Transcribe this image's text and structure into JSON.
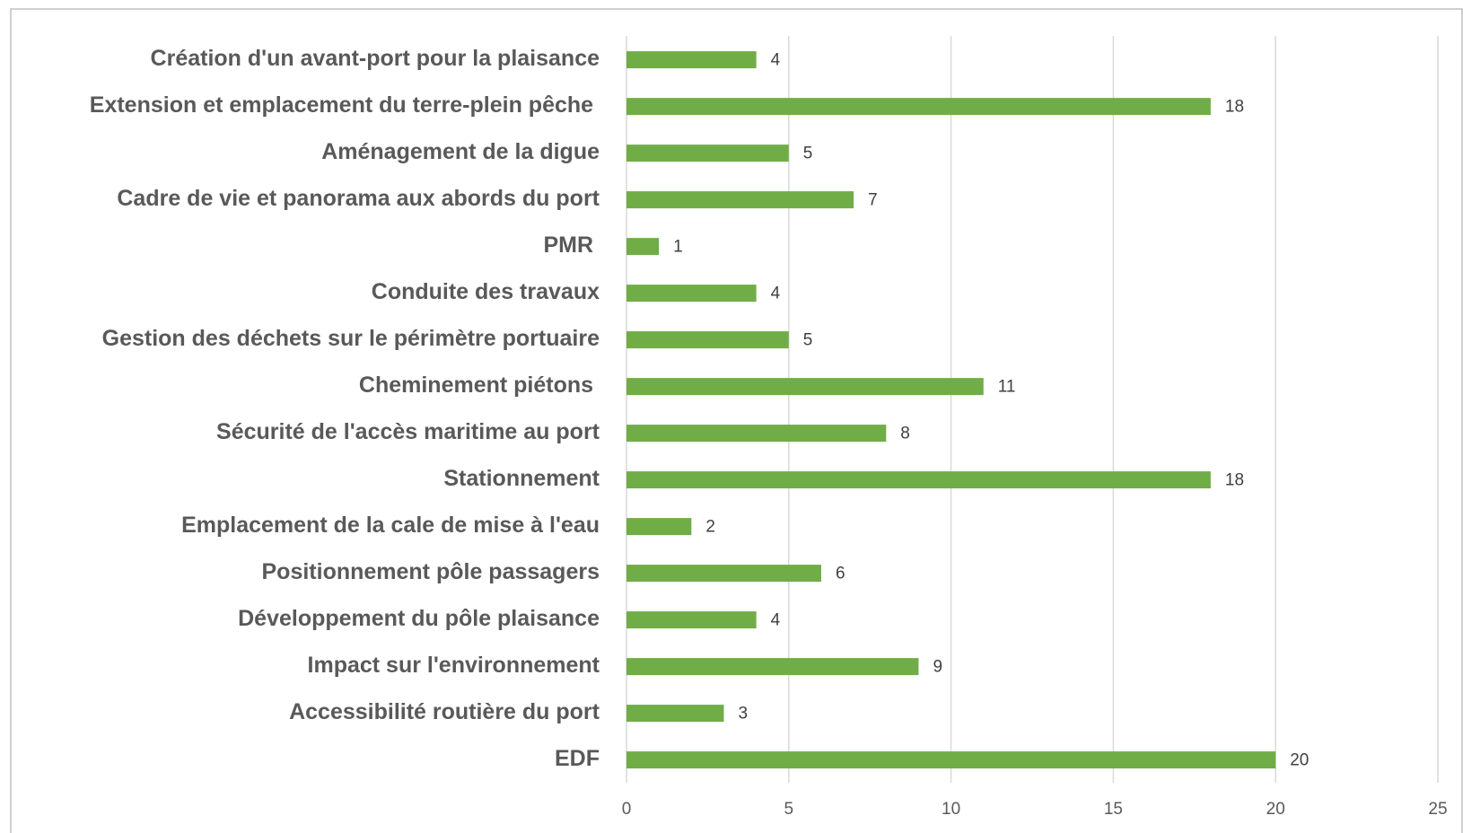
{
  "chart_data": {
    "type": "bar",
    "orientation": "horizontal",
    "categories": [
      "Création d'un avant-port pour la plaisance",
      "Extension et emplacement du terre-plein pêche ",
      "Aménagement de la digue",
      "Cadre de vie et panorama aux abords du port",
      "PMR ",
      "Conduite des travaux",
      "Gestion des déchets sur le périmètre portuaire",
      "Cheminement piétons ",
      "Sécurité de l'accès maritime au port",
      "Stationnement",
      "Emplacement de la cale de mise à l'eau",
      "Positionnement pôle passagers",
      "Développement du pôle plaisance",
      "Impact sur l'environnement",
      "Accessibilité routière du port",
      "EDF"
    ],
    "values": [
      4,
      18,
      5,
      7,
      1,
      4,
      5,
      11,
      8,
      18,
      2,
      6,
      4,
      9,
      3,
      20
    ],
    "color": "#70ad47",
    "xlim": [
      0,
      25
    ],
    "xticks": [
      0,
      5,
      10,
      15,
      20,
      25
    ],
    "grid": true
  }
}
